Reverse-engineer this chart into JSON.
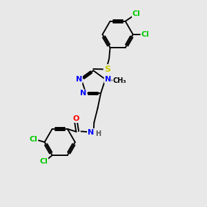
{
  "background_color": "#e8e8e8",
  "bond_color": "#000000",
  "atom_colors": {
    "N": "#0000ff",
    "O": "#ff0000",
    "S": "#cccc00",
    "Cl": "#00cc00",
    "C": "#000000",
    "H": "#555555"
  },
  "font_size_atoms": 8,
  "figsize": [
    3.0,
    3.0
  ],
  "dpi": 100,
  "xlim": [
    0,
    10
  ],
  "ylim": [
    0,
    10
  ]
}
